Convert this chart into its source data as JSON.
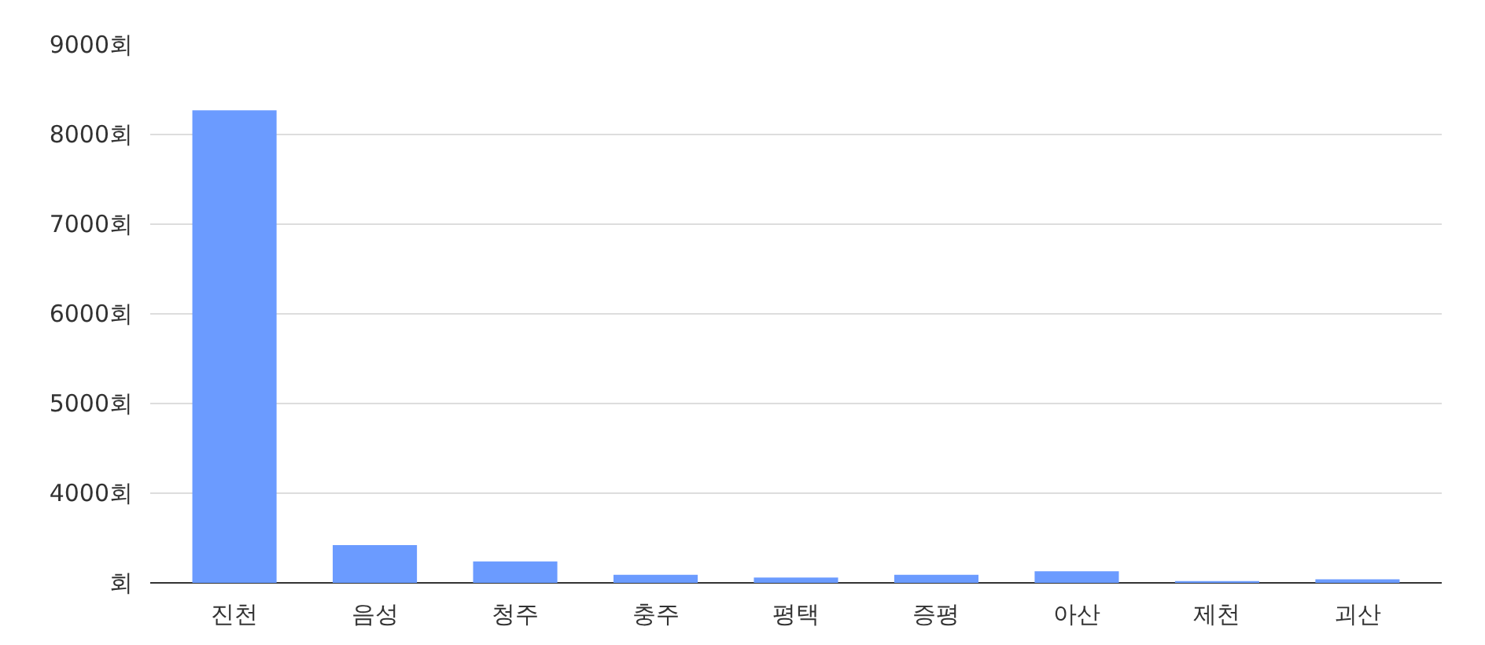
{
  "chart_data": {
    "type": "bar",
    "categories": [
      "진천",
      "음성",
      "청주",
      "충주",
      "평택",
      "증평",
      "아산",
      "제천",
      "괴산"
    ],
    "values": [
      8270,
      3420,
      3240,
      3090,
      3060,
      3090,
      3130,
      3020,
      3040
    ],
    "color": "#6b9bff",
    "ylim": [
      3000,
      9000
    ],
    "yticks": [
      {
        "value": 3000,
        "label": "회"
      },
      {
        "value": 4000,
        "label": "4000회"
      },
      {
        "value": 5000,
        "label": "5000회"
      },
      {
        "value": 6000,
        "label": "6000회"
      },
      {
        "value": 7000,
        "label": "7000회"
      },
      {
        "value": 8000,
        "label": "8000회"
      },
      {
        "value": 9000,
        "label": "9000회"
      }
    ],
    "grid": "y"
  }
}
